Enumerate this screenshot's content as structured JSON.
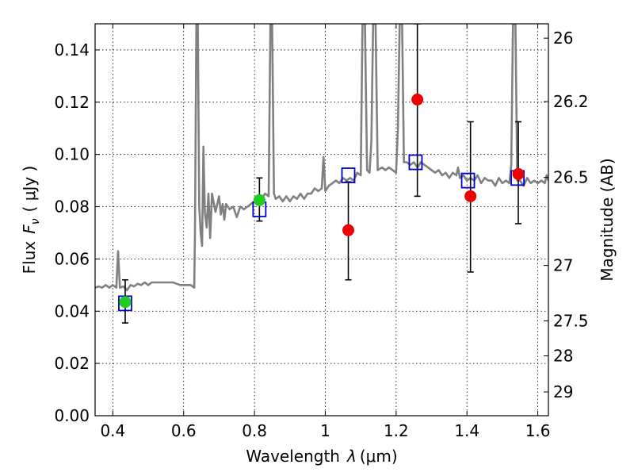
{
  "chart_data": {
    "type": "scatter",
    "title": "",
    "xlabel": {
      "prefix": "Wavelength",
      "symbol": "λ",
      "unit": "(μm)"
    },
    "ylabel": {
      "prefix": "Flux",
      "symbol": "F",
      "symbol_sub": "ν",
      "unit": "( μJy )"
    },
    "ylabel_right": "Magnitude (AB)",
    "xlim": [
      0.35,
      1.63
    ],
    "ylim": [
      0.0,
      0.15
    ],
    "grid": true,
    "x_ticks": [
      {
        "value": 0.4,
        "label": "0.4"
      },
      {
        "value": 0.6,
        "label": "0.6"
      },
      {
        "value": 0.8,
        "label": "0.8"
      },
      {
        "value": 1.0,
        "label": "1"
      },
      {
        "value": 1.2,
        "label": "1.2"
      },
      {
        "value": 1.4,
        "label": "1.4"
      },
      {
        "value": 1.6,
        "label": "1.6"
      }
    ],
    "y_ticks": [
      {
        "value": 0.0,
        "label": "0.00"
      },
      {
        "value": 0.02,
        "label": "0.02"
      },
      {
        "value": 0.04,
        "label": "0.04"
      },
      {
        "value": 0.06,
        "label": "0.06"
      },
      {
        "value": 0.08,
        "label": "0.08"
      },
      {
        "value": 0.1,
        "label": "0.10"
      },
      {
        "value": 0.12,
        "label": "0.12"
      },
      {
        "value": 0.14,
        "label": "0.14"
      }
    ],
    "right_ticks": [
      {
        "flux": 0.1445,
        "label": "26"
      },
      {
        "flux": 0.1202,
        "label": "26.2"
      },
      {
        "flux": 0.0912,
        "label": "26.5"
      },
      {
        "flux": 0.0575,
        "label": "27"
      },
      {
        "flux": 0.0363,
        "label": "27.5"
      },
      {
        "flux": 0.0229,
        "label": "28"
      },
      {
        "flux": 0.0091,
        "label": "29"
      }
    ],
    "spectrum": {
      "color": "#808080",
      "points": [
        [
          0.35,
          0.049
        ],
        [
          0.36,
          0.0495
        ],
        [
          0.37,
          0.049
        ],
        [
          0.38,
          0.05
        ],
        [
          0.39,
          0.049
        ],
        [
          0.4,
          0.05
        ],
        [
          0.41,
          0.049
        ],
        [
          0.415,
          0.063
        ],
        [
          0.42,
          0.049
        ],
        [
          0.43,
          0.0495
        ],
        [
          0.44,
          0.048
        ],
        [
          0.45,
          0.05
        ],
        [
          0.46,
          0.0495
        ],
        [
          0.47,
          0.0505
        ],
        [
          0.48,
          0.05
        ],
        [
          0.49,
          0.051
        ],
        [
          0.5,
          0.05
        ],
        [
          0.51,
          0.051
        ],
        [
          0.53,
          0.051
        ],
        [
          0.55,
          0.051
        ],
        [
          0.57,
          0.051
        ],
        [
          0.59,
          0.05
        ],
        [
          0.6,
          0.05
        ],
        [
          0.61,
          0.05
        ],
        [
          0.62,
          0.05
        ],
        [
          0.63,
          0.049
        ],
        [
          0.632,
          0.07
        ],
        [
          0.636,
          0.15
        ],
        [
          0.64,
          0.15
        ],
        [
          0.644,
          0.08
        ],
        [
          0.648,
          0.07
        ],
        [
          0.652,
          0.065
        ],
        [
          0.656,
          0.103
        ],
        [
          0.66,
          0.078
        ],
        [
          0.665,
          0.072
        ],
        [
          0.67,
          0.085
        ],
        [
          0.675,
          0.068
        ],
        [
          0.68,
          0.085
        ],
        [
          0.69,
          0.078
        ],
        [
          0.7,
          0.084
        ],
        [
          0.705,
          0.077
        ],
        [
          0.71,
          0.081
        ],
        [
          0.715,
          0.075
        ],
        [
          0.72,
          0.081
        ],
        [
          0.73,
          0.079
        ],
        [
          0.74,
          0.08
        ],
        [
          0.75,
          0.076
        ],
        [
          0.76,
          0.08
        ],
        [
          0.77,
          0.079
        ],
        [
          0.78,
          0.08
        ],
        [
          0.79,
          0.081
        ],
        [
          0.8,
          0.082
        ],
        [
          0.81,
          0.0825
        ],
        [
          0.82,
          0.083
        ],
        [
          0.83,
          0.085
        ],
        [
          0.84,
          0.084
        ],
        [
          0.845,
          0.15
        ],
        [
          0.85,
          0.15
        ],
        [
          0.855,
          0.085
        ],
        [
          0.86,
          0.083
        ],
        [
          0.87,
          0.084
        ],
        [
          0.88,
          0.082
        ],
        [
          0.89,
          0.084
        ],
        [
          0.9,
          0.082
        ],
        [
          0.91,
          0.084
        ],
        [
          0.92,
          0.083
        ],
        [
          0.93,
          0.085
        ],
        [
          0.94,
          0.083
        ],
        [
          0.95,
          0.085
        ],
        [
          0.96,
          0.085
        ],
        [
          0.97,
          0.087
        ],
        [
          0.98,
          0.086
        ],
        [
          0.99,
          0.087
        ],
        [
          0.995,
          0.099
        ],
        [
          1.0,
          0.086
        ],
        [
          1.01,
          0.088
        ],
        [
          1.02,
          0.089
        ],
        [
          1.03,
          0.09
        ],
        [
          1.04,
          0.089
        ],
        [
          1.05,
          0.091
        ],
        [
          1.06,
          0.09
        ],
        [
          1.07,
          0.091
        ],
        [
          1.08,
          0.09
        ],
        [
          1.09,
          0.093
        ],
        [
          1.1,
          0.092
        ],
        [
          1.105,
          0.15
        ],
        [
          1.112,
          0.15
        ],
        [
          1.118,
          0.094
        ],
        [
          1.125,
          0.093
        ],
        [
          1.13,
          0.105
        ],
        [
          1.135,
          0.15
        ],
        [
          1.142,
          0.15
        ],
        [
          1.148,
          0.094
        ],
        [
          1.16,
          0.095
        ],
        [
          1.17,
          0.094
        ],
        [
          1.18,
          0.095
        ],
        [
          1.19,
          0.094
        ],
        [
          1.2,
          0.093
        ],
        [
          1.205,
          0.11
        ],
        [
          1.21,
          0.15
        ],
        [
          1.217,
          0.15
        ],
        [
          1.222,
          0.097
        ],
        [
          1.23,
          0.097
        ],
        [
          1.24,
          0.096
        ],
        [
          1.25,
          0.097
        ],
        [
          1.26,
          0.095
        ],
        [
          1.27,
          0.097
        ],
        [
          1.28,
          0.096
        ],
        [
          1.29,
          0.095
        ],
        [
          1.3,
          0.094
        ],
        [
          1.31,
          0.093
        ],
        [
          1.32,
          0.094
        ],
        [
          1.33,
          0.092
        ],
        [
          1.34,
          0.093
        ],
        [
          1.35,
          0.091
        ],
        [
          1.36,
          0.093
        ],
        [
          1.37,
          0.092
        ],
        [
          1.375,
          0.095
        ],
        [
          1.38,
          0.091
        ],
        [
          1.39,
          0.092
        ],
        [
          1.4,
          0.09
        ],
        [
          1.41,
          0.091
        ],
        [
          1.42,
          0.09
        ],
        [
          1.43,
          0.092
        ],
        [
          1.44,
          0.089
        ],
        [
          1.45,
          0.091
        ],
        [
          1.46,
          0.09
        ],
        [
          1.47,
          0.09
        ],
        [
          1.48,
          0.088
        ],
        [
          1.49,
          0.091
        ],
        [
          1.5,
          0.089
        ],
        [
          1.51,
          0.09
        ],
        [
          1.52,
          0.089
        ],
        [
          1.525,
          0.096
        ],
        [
          1.53,
          0.15
        ],
        [
          1.537,
          0.15
        ],
        [
          1.542,
          0.09
        ],
        [
          1.55,
          0.09
        ],
        [
          1.56,
          0.088
        ],
        [
          1.57,
          0.091
        ],
        [
          1.58,
          0.089
        ],
        [
          1.59,
          0.09
        ],
        [
          1.6,
          0.089
        ],
        [
          1.61,
          0.09
        ],
        [
          1.62,
          0.089
        ],
        [
          1.625,
          0.092
        ],
        [
          1.63,
          0.09
        ]
      ]
    },
    "model_photometry": {
      "marker": "open-square",
      "color": "#0000cc",
      "points": [
        {
          "x": 0.435,
          "y": 0.043
        },
        {
          "x": 0.814,
          "y": 0.079
        },
        {
          "x": 1.065,
          "y": 0.092
        },
        {
          "x": 1.255,
          "y": 0.097
        },
        {
          "x": 1.403,
          "y": 0.09
        },
        {
          "x": 1.543,
          "y": 0.091
        }
      ]
    },
    "observed_photometry": {
      "marker": "filled-circle",
      "points": [
        {
          "x": 0.435,
          "y": 0.0435,
          "yerr_low": 0.0355,
          "yerr_high": 0.052,
          "color": "#22cc22"
        },
        {
          "x": 0.814,
          "y": 0.0825,
          "yerr_low": 0.0745,
          "yerr_high": 0.091,
          "color": "#22cc22"
        },
        {
          "x": 1.065,
          "y": 0.071,
          "yerr_low": 0.052,
          "yerr_high": 0.0895,
          "color": "#ee0000"
        },
        {
          "x": 1.26,
          "y": 0.121,
          "yerr_low": 0.084,
          "yerr_high": 0.15,
          "color": "#ee0000"
        },
        {
          "x": 1.41,
          "y": 0.084,
          "yerr_low": 0.055,
          "yerr_high": 0.1125,
          "color": "#ee0000"
        },
        {
          "x": 1.545,
          "y": 0.0925,
          "yerr_low": 0.0735,
          "yerr_high": 0.1125,
          "color": "#ee0000"
        }
      ]
    }
  }
}
